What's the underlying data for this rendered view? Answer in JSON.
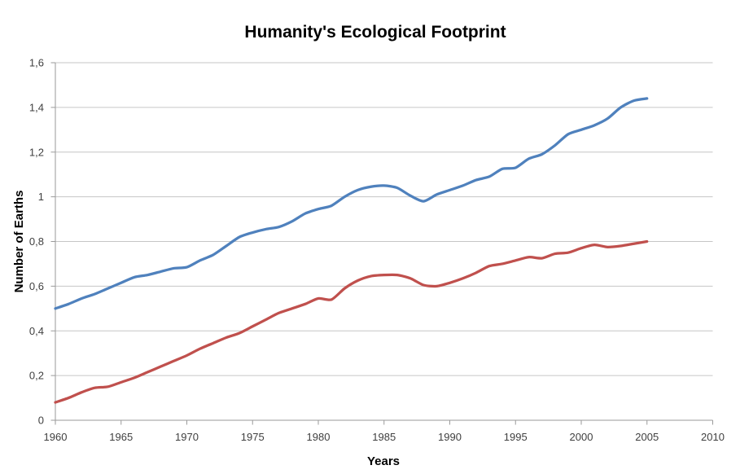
{
  "chart_data": {
    "type": "line",
    "title": "Humanity's Ecological Footprint",
    "xlabel": "Years",
    "ylabel": "Number of Earths",
    "xlim": [
      1960,
      2010
    ],
    "ylim": [
      0,
      1.6
    ],
    "grid": "horizontal",
    "legend": "none",
    "decimal_separator": ",",
    "x_ticks": [
      1960,
      1965,
      1970,
      1975,
      1980,
      1985,
      1990,
      1995,
      2000,
      2005,
      2010
    ],
    "y_ticks": [
      0,
      0.2,
      0.4,
      0.6,
      0.8,
      1,
      1.2,
      1.4,
      1.6
    ],
    "y_tick_labels": [
      "0",
      "0,2",
      "0,4",
      "0,6",
      "0,8",
      "1",
      "1,2",
      "1,4",
      "1,6"
    ],
    "x": [
      1960,
      1961,
      1962,
      1963,
      1964,
      1965,
      1966,
      1967,
      1968,
      1969,
      1970,
      1971,
      1972,
      1973,
      1974,
      1975,
      1976,
      1977,
      1978,
      1979,
      1980,
      1981,
      1982,
      1983,
      1984,
      1985,
      1986,
      1987,
      1988,
      1989,
      1990,
      1991,
      1992,
      1993,
      1994,
      1995,
      1996,
      1997,
      1998,
      1999,
      2000,
      2001,
      2002,
      2003,
      2004,
      2005
    ],
    "series": [
      {
        "name": "blue",
        "color": "#4F81BD",
        "values": [
          0.5,
          0.52,
          0.545,
          0.565,
          0.59,
          0.615,
          0.64,
          0.65,
          0.665,
          0.68,
          0.685,
          0.715,
          0.74,
          0.78,
          0.82,
          0.84,
          0.855,
          0.865,
          0.89,
          0.925,
          0.945,
          0.96,
          1.0,
          1.03,
          1.045,
          1.05,
          1.04,
          1.005,
          0.98,
          1.01,
          1.03,
          1.05,
          1.075,
          1.09,
          1.125,
          1.13,
          1.17,
          1.19,
          1.23,
          1.28,
          1.3,
          1.32,
          1.35,
          1.4,
          1.43,
          1.44
        ]
      },
      {
        "name": "red",
        "color": "#C0504D",
        "values": [
          0.08,
          0.1,
          0.125,
          0.145,
          0.15,
          0.17,
          0.19,
          0.215,
          0.24,
          0.265,
          0.29,
          0.32,
          0.345,
          0.37,
          0.39,
          0.42,
          0.45,
          0.48,
          0.5,
          0.52,
          0.545,
          0.54,
          0.59,
          0.625,
          0.645,
          0.65,
          0.65,
          0.635,
          0.605,
          0.6,
          0.615,
          0.635,
          0.66,
          0.69,
          0.7,
          0.715,
          0.73,
          0.725,
          0.745,
          0.75,
          0.77,
          0.785,
          0.775,
          0.78,
          0.79,
          0.8
        ]
      }
    ]
  },
  "colors": {
    "background": "#FFFFFF",
    "gridline": "#C6C6C6",
    "axis_line": "#9A9A9A",
    "tick_text": "#3F3F3F",
    "title_text": "#000000"
  }
}
